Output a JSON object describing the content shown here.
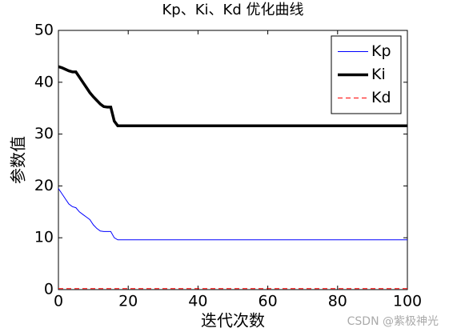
{
  "chart_data": {
    "type": "line",
    "title": "Kp、Ki、Kd 优化曲线",
    "x_label": "迭代次数",
    "y_label": "参数值",
    "x": [
      0,
      1,
      2,
      3,
      4,
      5,
      6,
      7,
      8,
      9,
      10,
      11,
      12,
      13,
      14,
      15,
      16,
      17,
      100
    ],
    "series": [
      {
        "name": "Kp",
        "color": "#0000ff",
        "line_width": 1,
        "dashed": false,
        "values": [
          19.5,
          18.5,
          17.5,
          16.5,
          16,
          15.8,
          15,
          14.5,
          14,
          13.5,
          12.5,
          11.8,
          11.3,
          11.2,
          11.2,
          11.2,
          10,
          9.6,
          9.6
        ]
      },
      {
        "name": "Ki",
        "color": "#000000",
        "line_width": 3.5,
        "dashed": false,
        "values": [
          43,
          42.8,
          42.5,
          42.2,
          42,
          42,
          41,
          40,
          39,
          38,
          37.2,
          36.5,
          35.8,
          35.3,
          35.2,
          35.2,
          32.5,
          31.6,
          31.6
        ]
      },
      {
        "name": "Kd",
        "color": "#ff0000",
        "line_width": 1,
        "dashed": true,
        "values": [
          0.2,
          0.2,
          0.2,
          0.2,
          0.2,
          0.2,
          0.2,
          0.2,
          0.2,
          0.2,
          0.2,
          0.2,
          0.2,
          0.2,
          0.2,
          0.2,
          0.2,
          0.2,
          0.2
        ]
      }
    ],
    "xlim": [
      0,
      100
    ],
    "xticks": [
      0,
      20,
      40,
      60,
      80,
      100
    ],
    "ylim": [
      0,
      50
    ],
    "yticks": [
      0,
      10,
      20,
      30,
      40,
      50
    ],
    "grid": false,
    "legend_position": "northeast"
  },
  "watermark": "CSDN @紫极神光"
}
